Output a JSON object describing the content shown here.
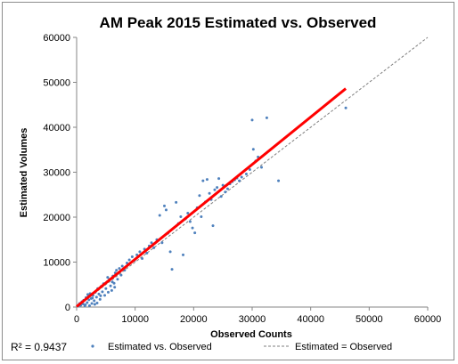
{
  "chart_data": {
    "type": "scatter",
    "title": "AM Peak 2015 Estimated vs. Observed",
    "xlabel": "Observed Counts",
    "ylabel": "Estimated Volumes",
    "xlim": [
      0,
      60000
    ],
    "ylim": [
      0,
      60000
    ],
    "x_ticks": [
      0,
      10000,
      20000,
      30000,
      40000,
      50000,
      60000
    ],
    "y_ticks": [
      0,
      10000,
      20000,
      30000,
      40000,
      50000,
      60000
    ],
    "x_tick_labels": [
      "0",
      "10000",
      "20000",
      "30000",
      "40000",
      "50000",
      "60000"
    ],
    "y_tick_labels": [
      "0",
      "10000",
      "20000",
      "30000",
      "40000",
      "50000",
      "60000"
    ],
    "grid": false,
    "legend_position": "bottom",
    "annotation": "R² = 0.9437",
    "colors": {
      "points": "#4f81bd",
      "fit_line": "#ff0000",
      "reference_line": "#7f7f7f"
    },
    "series": [
      {
        "name": "Estimated vs. Observed",
        "kind": "points",
        "points": [
          [
            300,
            200
          ],
          [
            500,
            800
          ],
          [
            700,
            400
          ],
          [
            900,
            1200
          ],
          [
            1100,
            700
          ],
          [
            1200,
            1500
          ],
          [
            1400,
            300
          ],
          [
            1600,
            2100
          ],
          [
            1800,
            1000
          ],
          [
            2000,
            2500
          ],
          [
            2100,
            1600
          ],
          [
            2300,
            3000
          ],
          [
            2500,
            1900
          ],
          [
            2600,
            800
          ],
          [
            2800,
            2600
          ],
          [
            3000,
            1400
          ],
          [
            3200,
            3300
          ],
          [
            3400,
            2200
          ],
          [
            3600,
            4100
          ],
          [
            3800,
            2900
          ],
          [
            4000,
            1700
          ],
          [
            4200,
            4600
          ],
          [
            4400,
            3400
          ],
          [
            4600,
            5200
          ],
          [
            4800,
            2600
          ],
          [
            5000,
            4100
          ],
          [
            5200,
            5600
          ],
          [
            5400,
            3300
          ],
          [
            5600,
            6200
          ],
          [
            5800,
            4700
          ],
          [
            6000,
            3700
          ],
          [
            6200,
            6900
          ],
          [
            6400,
            5300
          ],
          [
            6600,
            7600
          ],
          [
            6800,
            8200
          ],
          [
            7000,
            6200
          ],
          [
            7300,
            8600
          ],
          [
            7600,
            7100
          ],
          [
            7800,
            9100
          ],
          [
            8200,
            8200
          ],
          [
            8600,
            9800
          ],
          [
            9000,
            10500
          ],
          [
            9500,
            11200
          ],
          [
            9900,
            10400
          ],
          [
            10300,
            11600
          ],
          [
            10800,
            12300
          ],
          [
            11200,
            10800
          ],
          [
            11600,
            12900
          ],
          [
            12000,
            12000
          ],
          [
            12400,
            13600
          ],
          [
            12800,
            14300
          ],
          [
            13200,
            13200
          ],
          [
            13700,
            15000
          ],
          [
            14200,
            20400
          ],
          [
            14600,
            14300
          ],
          [
            15000,
            22500
          ],
          [
            15300,
            21600
          ],
          [
            15600,
            16400
          ],
          [
            16000,
            12300
          ],
          [
            16300,
            8400
          ],
          [
            16600,
            17600
          ],
          [
            17000,
            23300
          ],
          [
            17400,
            18600
          ],
          [
            17800,
            20100
          ],
          [
            18200,
            11600
          ],
          [
            18600,
            19600
          ],
          [
            19000,
            20900
          ],
          [
            19400,
            19000
          ],
          [
            19800,
            17600
          ],
          [
            20200,
            16500
          ],
          [
            20600,
            22100
          ],
          [
            21000,
            24800
          ],
          [
            21300,
            20100
          ],
          [
            21600,
            28100
          ],
          [
            22000,
            23400
          ],
          [
            22300,
            28400
          ],
          [
            22700,
            25300
          ],
          [
            23000,
            23900
          ],
          [
            23300,
            18100
          ],
          [
            23600,
            26100
          ],
          [
            24000,
            26600
          ],
          [
            24300,
            28600
          ],
          [
            24700,
            24600
          ],
          [
            25000,
            27100
          ],
          [
            25400,
            25600
          ],
          [
            25800,
            26300
          ],
          [
            26200,
            27400
          ],
          [
            26600,
            27900
          ],
          [
            27000,
            28300
          ],
          [
            27400,
            28700
          ],
          [
            27800,
            28100
          ],
          [
            28200,
            28900
          ],
          [
            29000,
            29600
          ],
          [
            29600,
            30600
          ],
          [
            30000,
            41600
          ],
          [
            30200,
            35100
          ],
          [
            30600,
            32500
          ],
          [
            31000,
            33400
          ],
          [
            31600,
            31100
          ],
          [
            32500,
            42100
          ],
          [
            34500,
            28100
          ],
          [
            46000,
            44300
          ],
          [
            1500,
            500
          ],
          [
            2200,
            300
          ],
          [
            3100,
            600
          ],
          [
            3500,
            900
          ],
          [
            2700,
            2000
          ],
          [
            1900,
            2800
          ],
          [
            4100,
            2500
          ],
          [
            5300,
            6600
          ],
          [
            6100,
            5600
          ],
          [
            6500,
            4400
          ]
        ]
      },
      {
        "name": "",
        "kind": "fit_line",
        "points": [
          [
            0,
            100
          ],
          [
            46000,
            48600
          ]
        ]
      },
      {
        "name": "Estimated = Observed",
        "kind": "reference_line",
        "points": [
          [
            0,
            0
          ],
          [
            60000,
            60000
          ]
        ]
      }
    ]
  }
}
